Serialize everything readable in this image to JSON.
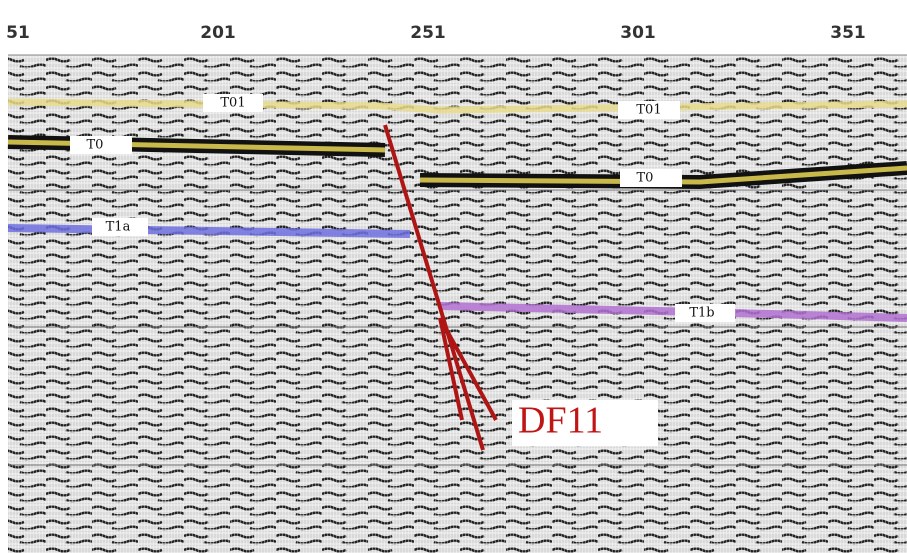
{
  "axis": {
    "ticks": [
      "51",
      "201",
      "251",
      "301",
      "351"
    ]
  },
  "horizons": [
    {
      "label": "T01"
    },
    {
      "label": "T01"
    },
    {
      "label": "T0"
    },
    {
      "label": "T0"
    },
    {
      "label": "T1a"
    },
    {
      "label": "T1b"
    }
  ],
  "fault": {
    "label": "DF11"
  }
}
